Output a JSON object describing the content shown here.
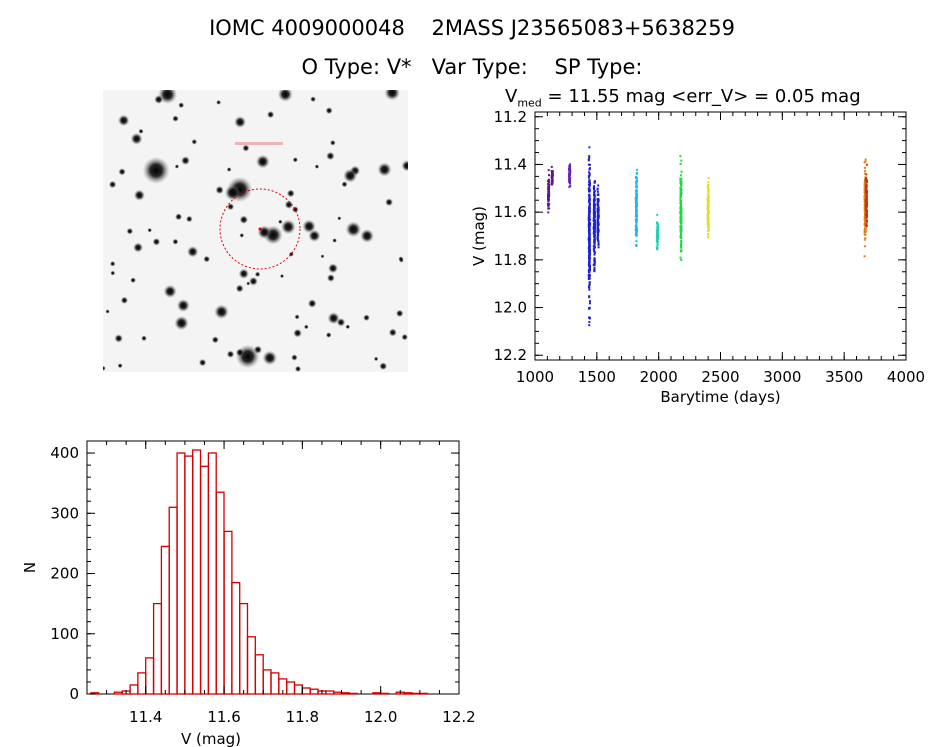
{
  "header": {
    "title_line1": "IOMC 4009000048    2MASS J23565083+5638259",
    "title_line2": "O Type: V*   Var Type:    SP Type:",
    "vmed_prefix": "V",
    "vmed_sub": "med",
    "vmed_rest": " = 11.55 mag <err_V> = 0.05 mag"
  },
  "colors": {
    "histogram": "#d00000",
    "circle": "#e00000"
  },
  "chart_data": [
    {
      "type": "scatter",
      "name": "light-curve",
      "xlabel": "Barytime (days)",
      "ylabel": "V (mag)",
      "xlim": [
        1000,
        4000
      ],
      "ylim": [
        12.22,
        11.18
      ],
      "y_inverted": true,
      "xticks": [
        "1000",
        "1500",
        "2000",
        "2500",
        "3000",
        "3500",
        "4000"
      ],
      "xtick_values": [
        1000,
        1500,
        2000,
        2500,
        3000,
        3500,
        4000
      ],
      "yticks": [
        "11.2",
        "11.4",
        "11.6",
        "11.8",
        "12.0",
        "12.2"
      ],
      "ytick_values": [
        11.2,
        11.4,
        11.6,
        11.8,
        12.0,
        12.2
      ],
      "grid": false,
      "groups": [
        {
          "x": 1110,
          "ymin": 11.42,
          "ymax": 11.62,
          "color": "#5a1a8a"
        },
        {
          "x": 1140,
          "ymin": 11.4,
          "ymax": 11.5,
          "color": "#5a1a8a"
        },
        {
          "x": 1280,
          "ymin": 11.36,
          "ymax": 11.52,
          "color": "#6a20b0"
        },
        {
          "x": 1440,
          "ymin": 11.26,
          "ymax": 12.15,
          "color": "#2020d0"
        },
        {
          "x": 1480,
          "ymin": 11.4,
          "ymax": 11.92,
          "color": "#2020d0"
        },
        {
          "x": 1510,
          "ymin": 11.46,
          "ymax": 11.8,
          "color": "#2020d0"
        },
        {
          "x": 1820,
          "ymin": 11.38,
          "ymax": 11.8,
          "color": "#20b8e0"
        },
        {
          "x": 1990,
          "ymin": 11.6,
          "ymax": 11.78,
          "color": "#20d0b0"
        },
        {
          "x": 2180,
          "ymin": 11.34,
          "ymax": 11.84,
          "color": "#20d840"
        },
        {
          "x": 2400,
          "ymin": 11.42,
          "ymax": 11.74,
          "color": "#e0e020"
        },
        {
          "x": 3670,
          "ymin": 11.34,
          "ymax": 11.82,
          "color": "#e08010"
        },
        {
          "x": 3680,
          "ymin": 11.38,
          "ymax": 11.72,
          "color": "#d03010"
        }
      ]
    },
    {
      "type": "bar",
      "name": "histogram",
      "xlabel": "V (mag)",
      "ylabel": "N",
      "xlim": [
        11.25,
        12.2
      ],
      "ylim": [
        0,
        420
      ],
      "xticks": [
        "11.4",
        "11.6",
        "11.8",
        "12.0",
        "12.2"
      ],
      "xtick_values": [
        11.4,
        11.6,
        11.8,
        12.0,
        12.2
      ],
      "yticks": [
        "0",
        "100",
        "200",
        "300",
        "400"
      ],
      "ytick_values": [
        0,
        100,
        200,
        300,
        400
      ],
      "bin_width": 0.02,
      "bin_start": 11.26,
      "values": [
        2,
        0,
        0,
        3,
        5,
        15,
        35,
        60,
        150,
        245,
        310,
        400,
        395,
        405,
        378,
        400,
        335,
        270,
        185,
        150,
        95,
        65,
        40,
        35,
        25,
        20,
        15,
        10,
        8,
        5,
        5,
        3,
        2,
        1,
        0,
        0,
        2,
        1,
        0,
        3,
        2,
        1,
        1,
        0,
        0,
        0,
        0
      ]
    }
  ],
  "image_cutout": {
    "star_count_hint": "finder chart"
  }
}
